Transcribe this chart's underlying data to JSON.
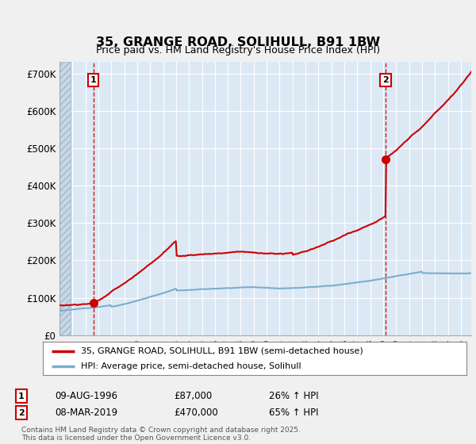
{
  "title": "35, GRANGE ROAD, SOLIHULL, B91 1BW",
  "subtitle": "Price paid vs. HM Land Registry's House Price Index (HPI)",
  "yticks": [
    0,
    100000,
    200000,
    300000,
    400000,
    500000,
    600000,
    700000
  ],
  "ytick_labels": [
    "£0",
    "£100K",
    "£200K",
    "£300K",
    "£400K",
    "£500K",
    "£600K",
    "£700K"
  ],
  "xlim": [
    1994.0,
    2025.8
  ],
  "ylim": [
    0,
    730000
  ],
  "sale_date1_x": 1996.61,
  "sale_date2_x": 2019.18,
  "sale_price1": 87000,
  "sale_price2": 470000,
  "legend_line1": "35, GRANGE ROAD, SOLIHULL, B91 1BW (semi-detached house)",
  "legend_line2": "HPI: Average price, semi-detached house, Solihull",
  "annotation1_label": "1",
  "annotation1_date": "09-AUG-1996",
  "annotation1_price": "£87,000",
  "annotation1_hpi": "26% ↑ HPI",
  "annotation2_label": "2",
  "annotation2_date": "08-MAR-2019",
  "annotation2_price": "£470,000",
  "annotation2_hpi": "65% ↑ HPI",
  "footer": "Contains HM Land Registry data © Crown copyright and database right 2025.\nThis data is licensed under the Open Government Licence v3.0.",
  "red_color": "#cc0000",
  "blue_color": "#7aadcf",
  "plot_bg_color": "#dce9f5",
  "background_color": "#f0f0f0",
  "dashed_vline_color": "#cc0000",
  "grid_color": "#ffffff"
}
